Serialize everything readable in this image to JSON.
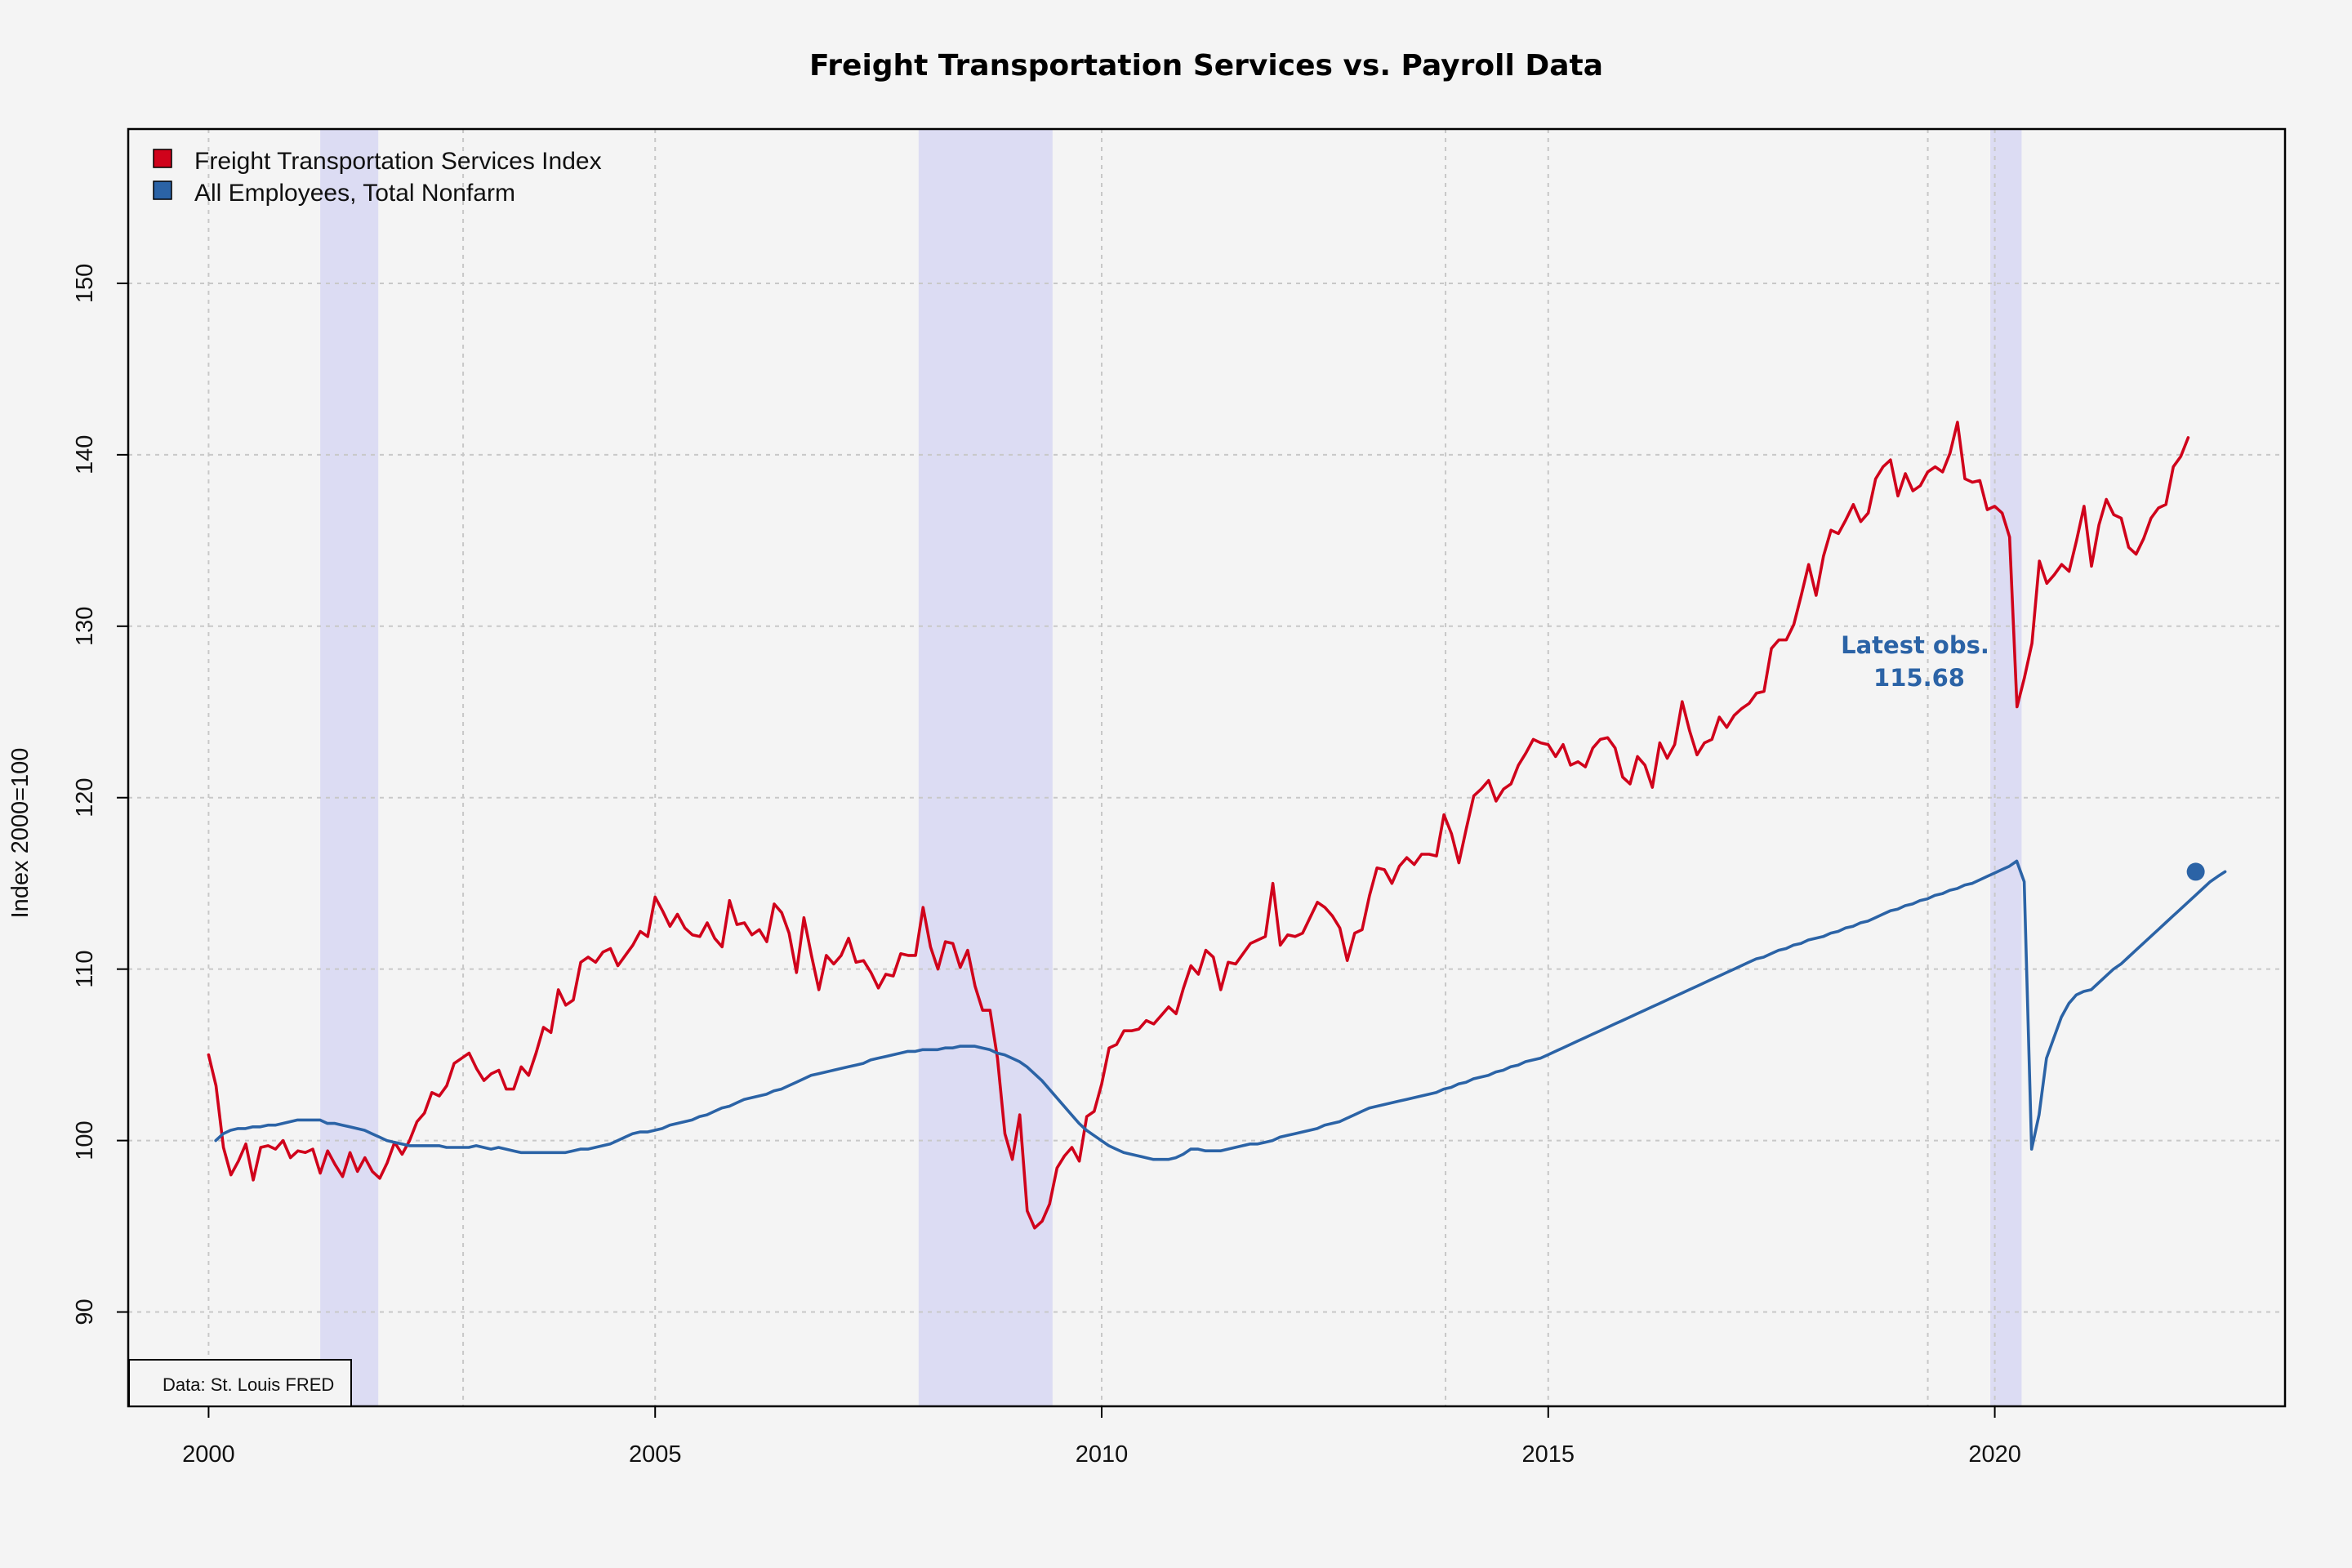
{
  "chart_data": {
    "type": "line",
    "title": "Freight Transportation Services vs. Payroll Data",
    "xlabel": "",
    "ylabel": "Index 2000=100",
    "xlim": [
      1999.1,
      2023.25
    ],
    "ylim": [
      84.5,
      159.0
    ],
    "x_ticks": [
      "2000",
      "2005",
      "2010",
      "2015",
      "2020"
    ],
    "x_tick_values": [
      2000,
      2005,
      2010,
      2015,
      2020
    ],
    "y_ticks": [
      "90",
      "100",
      "110",
      "120",
      "130",
      "140",
      "150"
    ],
    "y_tick_values": [
      90,
      100,
      110,
      120,
      130,
      140,
      150
    ],
    "grid": true,
    "legend_position": "top-left",
    "recessions": [
      [
        2001.25,
        2001.9
      ],
      [
        2007.95,
        2009.45
      ],
      [
        2019.95,
        2020.3
      ]
    ],
    "recession_color": "#dcdcf3",
    "source_note": "Data: St. Louis FRED",
    "annotation": {
      "label": "Latest obs.",
      "value": "115.68",
      "x": 2022.25,
      "y": 115.68,
      "color": "#2b63a6"
    },
    "series": [
      {
        "name": "Freight Transportation Services Index",
        "color": "#d0021b",
        "x_start": 2000.0,
        "step": 0.08333,
        "values": [
          105.0,
          103.2,
          99.6,
          98.0,
          98.8,
          99.8,
          97.7,
          99.6,
          99.7,
          99.5,
          100.0,
          99.0,
          99.4,
          99.3,
          99.5,
          98.1,
          99.4,
          98.6,
          97.9,
          99.3,
          98.2,
          99.0,
          98.2,
          97.8,
          98.7,
          99.9,
          99.2,
          100.0,
          101.1,
          101.6,
          102.8,
          102.6,
          103.2,
          104.5,
          104.8,
          105.1,
          104.2,
          103.5,
          103.9,
          104.1,
          103.0,
          103.0,
          104.3,
          103.8,
          105.1,
          106.6,
          106.3,
          108.8,
          107.9,
          108.2,
          110.4,
          110.7,
          110.4,
          111.0,
          111.2,
          110.2,
          110.8,
          111.4,
          112.2,
          111.9,
          114.2,
          113.4,
          112.5,
          113.2,
          112.4,
          112.0,
          111.9,
          112.7,
          111.8,
          111.3,
          114.0,
          112.6,
          112.7,
          112.0,
          112.3,
          111.6,
          113.8,
          113.3,
          112.1,
          109.8,
          113.0,
          110.8,
          108.8,
          110.8,
          110.3,
          110.8,
          111.8,
          110.4,
          110.5,
          109.8,
          108.9,
          109.7,
          109.6,
          110.9,
          110.8,
          110.8,
          113.6,
          111.3,
          110.0,
          111.6,
          111.5,
          110.1,
          111.1,
          109.0,
          107.6,
          107.6,
          104.8,
          100.4,
          98.9,
          101.5,
          95.9,
          94.9,
          95.3,
          96.3,
          98.4,
          99.1,
          99.6,
          98.8,
          101.4,
          101.7,
          103.3,
          105.4,
          105.6,
          106.4,
          106.4,
          106.5,
          107.0,
          106.8,
          107.3,
          107.8,
          107.4,
          108.9,
          110.2,
          109.7,
          111.1,
          110.7,
          108.8,
          110.4,
          110.3,
          110.9,
          111.5,
          111.7,
          111.9,
          115.0,
          111.4,
          112.0,
          111.9,
          112.1,
          113.0,
          113.9,
          113.6,
          113.1,
          112.4,
          110.5,
          112.1,
          112.3,
          114.3,
          115.9,
          115.8,
          115.0,
          116.0,
          116.5,
          116.1,
          116.7,
          116.7,
          116.6,
          119.0,
          117.9,
          116.2,
          118.2,
          120.1,
          120.5,
          121.0,
          119.8,
          120.5,
          120.8,
          121.9,
          122.6,
          123.4,
          123.2,
          123.1,
          122.4,
          123.1,
          121.9,
          122.1,
          121.8,
          122.9,
          123.4,
          123.5,
          122.9,
          121.2,
          120.8,
          122.4,
          121.9,
          120.6,
          123.2,
          122.3,
          123.1,
          125.6,
          123.9,
          122.5,
          123.2,
          123.4,
          124.7,
          124.1,
          124.8,
          125.2,
          125.5,
          126.1,
          126.2,
          128.7,
          129.2,
          129.2,
          130.1,
          131.8,
          133.6,
          131.8,
          134.1,
          135.6,
          135.4,
          136.2,
          137.1,
          136.1,
          136.6,
          138.6,
          139.3,
          139.7,
          137.6,
          138.9,
          137.9,
          138.2,
          139.0,
          139.3,
          139.0,
          140.1,
          141.9,
          138.6,
          138.4,
          138.5,
          136.8,
          137.0,
          136.6,
          135.2,
          125.3,
          127.0,
          129.0,
          133.8,
          132.5,
          133.0,
          133.6,
          133.2,
          135.0,
          137.0,
          133.5,
          135.9,
          137.4,
          136.5,
          136.3,
          134.6,
          134.2,
          135.1,
          136.3,
          136.9,
          137.1,
          139.3,
          139.9,
          141.0
        ]
      },
      {
        "name": "All Employees, Total Nonfarm",
        "color": "#2b63a6",
        "x_start": 2000.08,
        "step": 0.08333,
        "values": [
          100.0,
          100.4,
          100.6,
          100.7,
          100.7,
          100.8,
          100.8,
          100.9,
          100.9,
          101.0,
          101.1,
          101.2,
          101.2,
          101.2,
          101.2,
          101.0,
          101.0,
          100.9,
          100.8,
          100.7,
          100.6,
          100.4,
          100.2,
          100.0,
          99.9,
          99.8,
          99.7,
          99.7,
          99.7,
          99.7,
          99.7,
          99.6,
          99.6,
          99.6,
          99.6,
          99.7,
          99.6,
          99.5,
          99.6,
          99.5,
          99.4,
          99.3,
          99.3,
          99.3,
          99.3,
          99.3,
          99.3,
          99.3,
          99.4,
          99.5,
          99.5,
          99.6,
          99.7,
          99.8,
          100.0,
          100.2,
          100.4,
          100.5,
          100.5,
          100.6,
          100.7,
          100.9,
          101.0,
          101.1,
          101.2,
          101.4,
          101.5,
          101.7,
          101.9,
          102.0,
          102.2,
          102.4,
          102.5,
          102.6,
          102.7,
          102.9,
          103.0,
          103.2,
          103.4,
          103.6,
          103.8,
          103.9,
          104.0,
          104.1,
          104.2,
          104.3,
          104.4,
          104.5,
          104.7,
          104.8,
          104.9,
          105.0,
          105.1,
          105.2,
          105.2,
          105.3,
          105.3,
          105.3,
          105.4,
          105.4,
          105.5,
          105.5,
          105.5,
          105.4,
          105.3,
          105.1,
          105.0,
          104.8,
          104.6,
          104.3,
          103.9,
          103.5,
          103.0,
          102.5,
          102.0,
          101.5,
          101.0,
          100.6,
          100.3,
          100.0,
          99.7,
          99.5,
          99.3,
          99.2,
          99.1,
          99.0,
          98.9,
          98.9,
          98.9,
          99.0,
          99.2,
          99.5,
          99.5,
          99.4,
          99.4,
          99.4,
          99.5,
          99.6,
          99.7,
          99.8,
          99.8,
          99.9,
          100.0,
          100.2,
          100.3,
          100.4,
          100.5,
          100.6,
          100.7,
          100.9,
          101.0,
          101.1,
          101.3,
          101.5,
          101.7,
          101.9,
          102.0,
          102.1,
          102.2,
          102.3,
          102.4,
          102.5,
          102.6,
          102.7,
          102.8,
          103.0,
          103.1,
          103.3,
          103.4,
          103.6,
          103.7,
          103.8,
          104.0,
          104.1,
          104.3,
          104.4,
          104.6,
          104.7,
          104.8,
          105.0,
          105.2,
          105.4,
          105.6,
          105.8,
          106.0,
          106.2,
          106.4,
          106.6,
          106.8,
          107.0,
          107.2,
          107.4,
          107.6,
          107.8,
          108.0,
          108.2,
          108.4,
          108.6,
          108.8,
          109.0,
          109.2,
          109.4,
          109.6,
          109.8,
          110.0,
          110.2,
          110.4,
          110.6,
          110.7,
          110.9,
          111.1,
          111.2,
          111.4,
          111.5,
          111.7,
          111.8,
          111.9,
          112.1,
          112.2,
          112.4,
          112.5,
          112.7,
          112.8,
          113.0,
          113.2,
          113.4,
          113.5,
          113.7,
          113.8,
          114.0,
          114.1,
          114.3,
          114.4,
          114.6,
          114.7,
          114.9,
          115.0,
          115.2,
          115.4,
          115.6,
          115.8,
          116.0,
          116.3,
          115.1,
          99.5,
          101.5,
          104.8,
          106.0,
          107.2,
          108.0,
          108.5,
          108.7,
          108.8,
          109.2,
          109.6,
          110.0,
          110.3,
          110.7,
          111.1,
          111.5,
          111.9,
          112.3,
          112.7,
          113.1,
          113.5,
          113.9,
          114.3,
          114.7,
          115.1,
          115.4,
          115.68
        ]
      }
    ]
  }
}
